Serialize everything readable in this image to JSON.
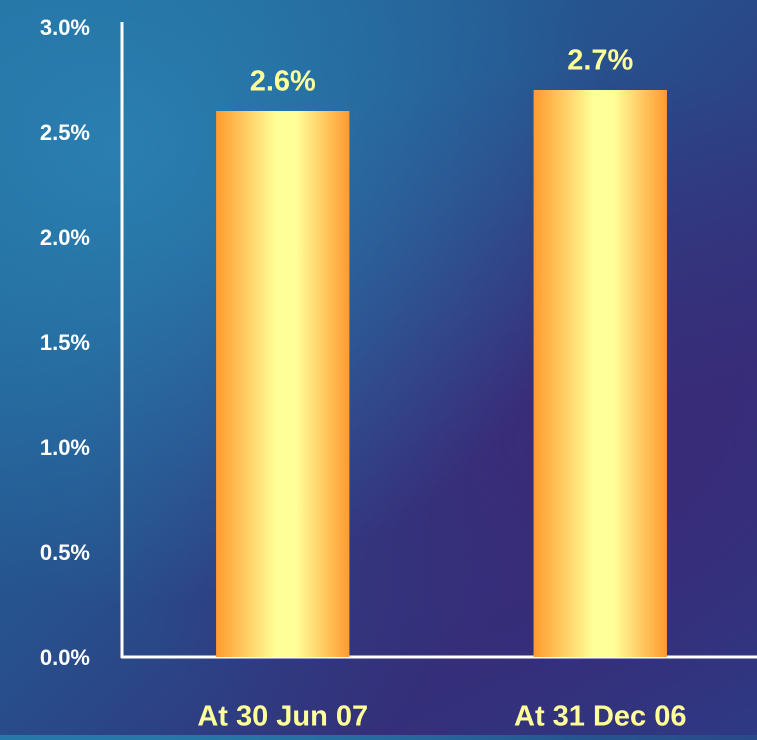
{
  "chart_data": {
    "type": "bar",
    "categories": [
      "At 30 Jun 07",
      "At 31 Dec 06"
    ],
    "values": [
      2.6,
      2.7
    ],
    "value_labels": [
      "2.6%",
      "2.7%"
    ],
    "color": "#ff9a2e",
    "ylim": [
      0,
      3
    ],
    "yticks": [
      {
        "value": 0,
        "label": "0.0%"
      },
      {
        "value": 0.5,
        "label": "0.5%"
      },
      {
        "value": 1,
        "label": "1.0%"
      },
      {
        "value": 1.5,
        "label": "1.5%"
      },
      {
        "value": 2,
        "label": "2.0%"
      },
      {
        "value": 2.5,
        "label": "2.5%"
      },
      {
        "value": 3,
        "label": "3.0%"
      }
    ],
    "grid": false
  }
}
